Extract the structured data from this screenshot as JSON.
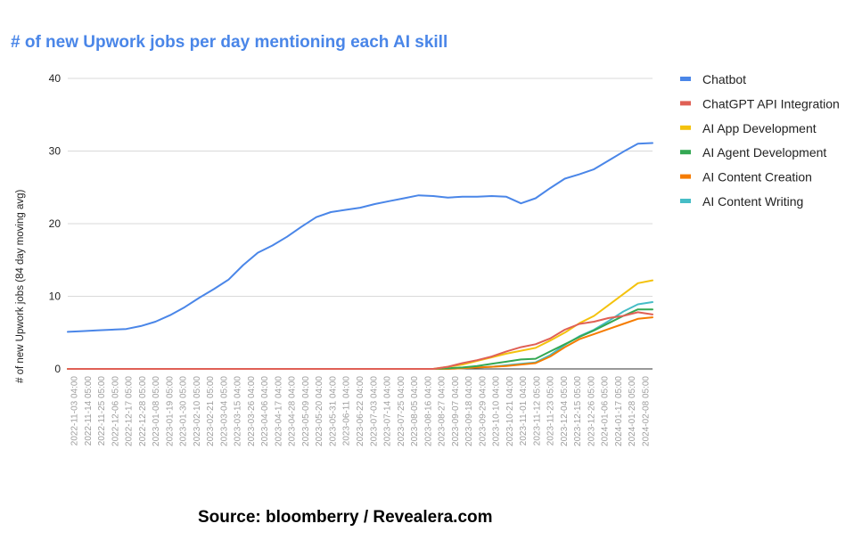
{
  "chart_data": {
    "type": "line",
    "title": "# of new Upwork jobs per day mentioning each AI skill",
    "ylabel": "# of new Upwork jobs (84 day moving avg)",
    "xlabel": "",
    "ylim": [
      0,
      40
    ],
    "yticks": [
      0,
      10,
      20,
      30,
      40
    ],
    "grid": true,
    "legend_position": "right",
    "source": "Source: bloomberry / Revealera.com",
    "x_tick_labels": [
      "2022-11-03 04:00",
      "2022-11-14 05:00",
      "2022-11-25 05:00",
      "2022-12-06 05:00",
      "2022-12-17 05:00",
      "2022-12-28 05:00",
      "2023-01-08 05:00",
      "2023-01-19 05:00",
      "2023-01-30 05:00",
      "2023-02-10 05:00",
      "2023-02-21 05:00",
      "2023-03-04 05:00",
      "2023-03-15 04:00",
      "2023-03-26 04:00",
      "2023-04-06 04:00",
      "2023-04-17 04:00",
      "2023-04-28 04:00",
      "2023-05-09 04:00",
      "2023-05-20 04:00",
      "2023-05-31 04:00",
      "2023-06-11 04:00",
      "2023-06-22 04:00",
      "2023-07-03 04:00",
      "2023-07-14 04:00",
      "2023-07-25 04:00",
      "2023-08-05 04:00",
      "2023-08-16 04:00",
      "2023-08-27 04:00",
      "2023-09-07 04:00",
      "2023-09-18 04:00",
      "2023-09-29 04:00",
      "2023-10-10 04:00",
      "2023-10-21 04:00",
      "2023-11-01 04:00",
      "2023-11-12 05:00",
      "2023-11-23 05:00",
      "2023-12-04 05:00",
      "2023-12-15 05:00",
      "2023-12-26 05:00",
      "2024-01-06 05:00",
      "2024-01-17 05:00",
      "2024-01-28 05:00",
      "2024-02-08 05:00"
    ],
    "series": [
      {
        "name": "Chatbot",
        "color": "#4a86e8",
        "values": [
          5.1,
          5.2,
          5.3,
          5.4,
          5.5,
          5.9,
          6.5,
          7.4,
          8.5,
          9.8,
          11.0,
          12.3,
          14.3,
          16.0,
          17.0,
          18.2,
          19.6,
          20.9,
          21.6,
          21.9,
          22.2,
          22.7,
          23.1,
          23.5,
          23.9,
          23.8,
          23.6,
          23.7,
          23.7,
          23.8,
          23.7,
          22.8,
          23.5,
          24.9,
          26.2,
          26.8,
          27.5,
          28.7,
          29.9,
          31.0,
          31.1
        ]
      },
      {
        "name": "ChatGPT API Integration",
        "color": "#e06055",
        "values": [
          0,
          0,
          0,
          0,
          0,
          0,
          0,
          0,
          0,
          0,
          0,
          0,
          0,
          0,
          0,
          0,
          0,
          0,
          0,
          0,
          0,
          0,
          0,
          0,
          0,
          0,
          0.3,
          0.8,
          1.2,
          1.7,
          2.4,
          3.0,
          3.4,
          4.2,
          5.4,
          6.2,
          6.5,
          7.0,
          7.3,
          7.8,
          7.5
        ]
      },
      {
        "name": "AI App Development",
        "color": "#f4c20d",
        "values": [
          0,
          0,
          0,
          0,
          0,
          0,
          0,
          0,
          0,
          0,
          0,
          0,
          0,
          0,
          0,
          0,
          0,
          0,
          0,
          0,
          0,
          0,
          0,
          0,
          0,
          0,
          0.3,
          0.6,
          1.1,
          1.6,
          2.1,
          2.5,
          2.9,
          3.9,
          5.0,
          6.3,
          7.3,
          8.8,
          10.3,
          11.8,
          12.2
        ]
      },
      {
        "name": "AI Agent Development",
        "color": "#34a853",
        "values": [
          0,
          0,
          0,
          0,
          0,
          0,
          0,
          0,
          0,
          0,
          0,
          0,
          0,
          0,
          0,
          0,
          0,
          0,
          0,
          0,
          0,
          0,
          0,
          0,
          0,
          0,
          0.1,
          0.2,
          0.4,
          0.7,
          1.0,
          1.3,
          1.4,
          2.4,
          3.4,
          4.4,
          5.3,
          6.3,
          7.3,
          8.2,
          8.2
        ]
      },
      {
        "name": "AI Content Creation",
        "color": "#f57c00",
        "values": [
          0,
          0,
          0,
          0,
          0,
          0,
          0,
          0,
          0,
          0,
          0,
          0,
          0,
          0,
          0,
          0,
          0,
          0,
          0,
          0,
          0,
          0,
          0,
          0,
          0,
          0,
          0,
          0.1,
          0.2,
          0.3,
          0.4,
          0.6,
          0.8,
          1.7,
          3.0,
          4.1,
          4.8,
          5.5,
          6.2,
          6.9,
          7.1
        ]
      },
      {
        "name": "AI Content Writing",
        "color": "#46bdc6",
        "values": [
          0,
          0,
          0,
          0,
          0,
          0,
          0,
          0,
          0,
          0,
          0,
          0,
          0,
          0,
          0,
          0,
          0,
          0,
          0,
          0,
          0,
          0,
          0,
          0,
          0,
          0,
          0,
          0.1,
          0.2,
          0.3,
          0.5,
          0.7,
          0.9,
          1.9,
          3.3,
          4.5,
          5.4,
          6.6,
          7.9,
          8.9,
          9.2
        ]
      }
    ]
  }
}
